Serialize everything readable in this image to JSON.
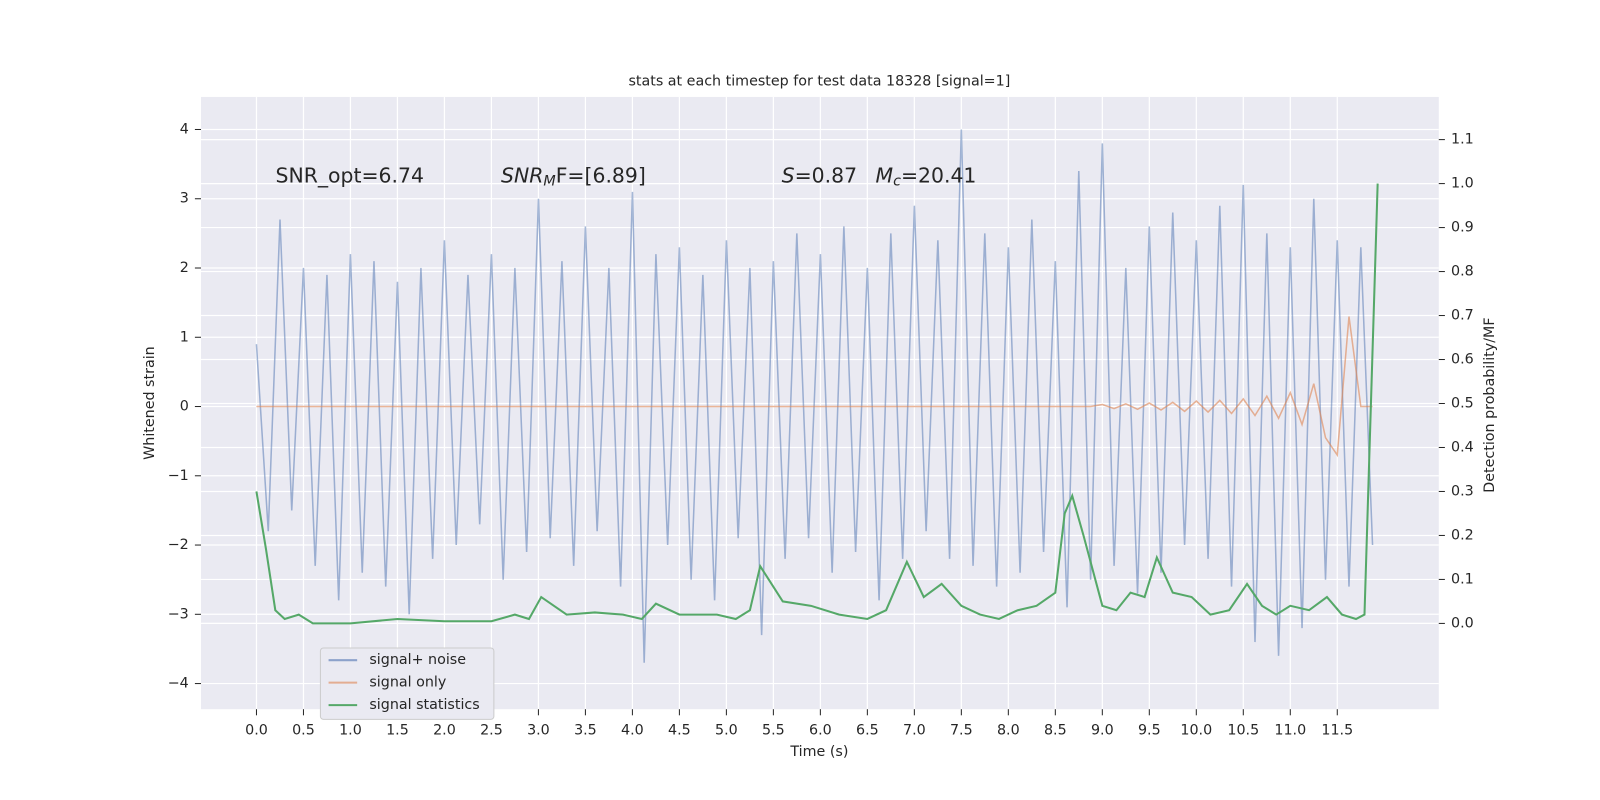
{
  "chart_data": {
    "type": "line",
    "title": "stats at each timestep for test data 18328 [signal=1]",
    "x_label": "Time (s)",
    "y_label": "Whitened strain",
    "y2_label": "Detection probability/MF",
    "annotations": [
      {
        "parts": [
          "SNR_opt=6.74"
        ]
      },
      {
        "parts": [
          "SNR",
          "M",
          "F=[6.89]"
        ]
      },
      {
        "parts": [
          "S",
          "=0.87"
        ]
      },
      {
        "parts": [
          "M",
          "c",
          "=20.41"
        ]
      }
    ],
    "xlim": [
      -0.59,
      12.58
    ],
    "ylim": [
      -4.37,
      4.47
    ],
    "y2lim": [
      -0.195,
      1.197
    ],
    "xticks": [
      {
        "value": 0,
        "label": "0.0"
      },
      {
        "value": 0.5,
        "label": "0.5"
      },
      {
        "value": 1,
        "label": "1.0"
      },
      {
        "value": 1.5,
        "label": "1.5"
      },
      {
        "value": 2,
        "label": "2.0"
      },
      {
        "value": 2.5,
        "label": "2.5"
      },
      {
        "value": 3,
        "label": "3.0"
      },
      {
        "value": 3.5,
        "label": "3.5"
      },
      {
        "value": 4,
        "label": "4.0"
      },
      {
        "value": 4.5,
        "label": "4.5"
      },
      {
        "value": 5,
        "label": "5.0"
      },
      {
        "value": 5.5,
        "label": "5.5"
      },
      {
        "value": 6,
        "label": "6.0"
      },
      {
        "value": 6.5,
        "label": "6.5"
      },
      {
        "value": 7,
        "label": "7.0"
      },
      {
        "value": 7.5,
        "label": "7.5"
      },
      {
        "value": 8,
        "label": "8.0"
      },
      {
        "value": 8.5,
        "label": "8.5"
      },
      {
        "value": 9,
        "label": "9.0"
      },
      {
        "value": 9.5,
        "label": "9.5"
      },
      {
        "value": 10,
        "label": "10.0"
      },
      {
        "value": 10.5,
        "label": "10.5"
      },
      {
        "value": 11,
        "label": "11.0"
      },
      {
        "value": 11.5,
        "label": "11.5"
      }
    ],
    "yticks": [
      {
        "value": -4,
        "label": "−4"
      },
      {
        "value": -3,
        "label": "−3"
      },
      {
        "value": -2,
        "label": "−2"
      },
      {
        "value": -1,
        "label": "−1"
      },
      0,
      1,
      2,
      3,
      4
    ],
    "y2ticks": [
      {
        "value": 0,
        "label": "0.0"
      },
      {
        "value": 0.1,
        "label": "0.1"
      },
      {
        "value": 0.2,
        "label": "0.2"
      },
      {
        "value": 0.3,
        "label": "0.3"
      },
      {
        "value": 0.4,
        "label": "0.4"
      },
      {
        "value": 0.5,
        "label": "0.5"
      },
      {
        "value": 0.6,
        "label": "0.6"
      },
      {
        "value": 0.7,
        "label": "0.7"
      },
      {
        "value": 0.8,
        "label": "0.8"
      },
      {
        "value": 0.9,
        "label": "0.9"
      },
      {
        "value": 1.0,
        "label": "1.0"
      },
      {
        "value": 1.1,
        "label": "1.1"
      }
    ],
    "grid": true,
    "legend": "lower left",
    "x": [
      0,
      0.125,
      0.25,
      0.375,
      0.5,
      0.625,
      0.75,
      0.875,
      1,
      1.125,
      1.25,
      1.375,
      1.5,
      1.625,
      1.75,
      1.875,
      2,
      2.125,
      2.25,
      2.375,
      2.5,
      2.625,
      2.75,
      2.875,
      3,
      3.125,
      3.25,
      3.375,
      3.5,
      3.625,
      3.75,
      3.875,
      4,
      4.125,
      4.25,
      4.375,
      4.5,
      4.625,
      4.75,
      4.875,
      5,
      5.125,
      5.25,
      5.375,
      5.5,
      5.625,
      5.75,
      5.875,
      6,
      6.125,
      6.25,
      6.375,
      6.5,
      6.625,
      6.75,
      6.875,
      7,
      7.125,
      7.25,
      7.375,
      7.5,
      7.625,
      7.75,
      7.875,
      8,
      8.125,
      8.25,
      8.375,
      8.5,
      8.625,
      8.75,
      8.875,
      9,
      9.125,
      9.25,
      9.375,
      9.5,
      9.625,
      9.75,
      9.875,
      10,
      10.125,
      10.25,
      10.375,
      10.5,
      10.625,
      10.75,
      10.875,
      11,
      11.125,
      11.25,
      11.375,
      11.5,
      11.625,
      11.75,
      11.875
    ],
    "series": [
      {
        "name": "signal+ noise",
        "color": "#4c72b0",
        "values": [
          0.9,
          -1.8,
          2.7,
          -1.5,
          2.0,
          -2.3,
          1.9,
          -2.8,
          2.2,
          -2.4,
          2.1,
          -2.6,
          1.8,
          -3.0,
          2.0,
          -2.2,
          2.4,
          -2.0,
          1.9,
          -1.7,
          2.2,
          -2.5,
          2.0,
          -2.1,
          3.0,
          -1.9,
          2.1,
          -2.3,
          2.6,
          -1.8,
          2.0,
          -2.6,
          3.1,
          -3.7,
          2.2,
          -2.0,
          2.3,
          -2.5,
          1.9,
          -2.8,
          2.4,
          -1.9,
          2.0,
          -3.3,
          2.1,
          -2.2,
          2.5,
          -1.9,
          2.2,
          -2.4,
          2.6,
          -2.1,
          2.0,
          -2.8,
          2.5,
          -2.2,
          2.9,
          -1.8,
          2.4,
          -2.2,
          4.0,
          -2.3,
          2.5,
          -2.6,
          2.3,
          -2.4,
          2.7,
          -2.1,
          2.1,
          -2.9,
          3.4,
          -2.5,
          3.8,
          -2.3,
          2.0,
          -2.7,
          2.6,
          -2.4,
          2.8,
          -2.0,
          2.4,
          -2.2,
          2.9,
          -2.6,
          3.2,
          -3.4,
          2.5,
          -3.6,
          2.3,
          -3.2,
          3.0,
          -2.5,
          2.4,
          -2.6,
          2.3,
          -2.0
        ]
      },
      {
        "name": "signal only",
        "color": "#dd8452",
        "values": [
          0,
          0,
          0,
          0,
          0,
          0,
          0,
          0,
          0,
          0,
          0,
          0,
          0,
          0,
          0,
          0,
          0,
          0,
          0,
          0,
          0,
          0,
          0,
          0,
          0,
          0,
          0,
          0,
          0,
          0,
          0,
          0,
          0,
          0,
          0,
          0,
          0,
          0,
          0,
          0,
          0,
          0,
          0,
          0,
          0,
          0,
          0,
          0,
          0,
          0,
          0,
          0,
          0,
          0,
          0,
          0,
          0,
          0,
          0,
          0,
          0,
          0,
          0,
          0,
          0,
          0,
          0,
          0,
          0,
          0,
          0,
          0,
          0.03,
          -0.03,
          0.04,
          -0.04,
          0.05,
          -0.05,
          0.06,
          -0.07,
          0.08,
          -0.08,
          0.09,
          -0.1,
          0.11,
          -0.13,
          0.15,
          -0.17,
          0.2,
          -0.26,
          0.33,
          -0.45,
          -0.7,
          1.3,
          0,
          0
        ]
      },
      {
        "name": "signal statistics",
        "color": "#55a868",
        "axis": "y2",
        "x": [
          0,
          0.1,
          0.2,
          0.3,
          0.45,
          0.6,
          1.0,
          1.5,
          2.0,
          2.5,
          2.75,
          2.9,
          3.03,
          3.3,
          3.6,
          3.9,
          4.1,
          4.25,
          4.5,
          4.9,
          5.1,
          5.25,
          5.36,
          5.45,
          5.6,
          5.9,
          6.2,
          6.5,
          6.7,
          6.92,
          7.1,
          7.29,
          7.5,
          7.7,
          7.9,
          8.1,
          8.3,
          8.5,
          8.6,
          8.68,
          8.8,
          9.0,
          9.15,
          9.3,
          9.45,
          9.58,
          9.75,
          9.95,
          10.15,
          10.35,
          10.54,
          10.7,
          10.85,
          11.0,
          11.2,
          11.39,
          11.55,
          11.7,
          11.79,
          11.93
        ],
        "values": [
          0.3,
          0.17,
          0.03,
          0.01,
          0.02,
          0.0,
          0.0,
          0.01,
          0.005,
          0.005,
          0.02,
          0.01,
          0.06,
          0.02,
          0.025,
          0.02,
          0.01,
          0.045,
          0.02,
          0.02,
          0.01,
          0.03,
          0.13,
          0.1,
          0.05,
          0.04,
          0.02,
          0.01,
          0.03,
          0.14,
          0.06,
          0.09,
          0.04,
          0.02,
          0.01,
          0.03,
          0.04,
          0.07,
          0.25,
          0.29,
          0.2,
          0.04,
          0.03,
          0.07,
          0.06,
          0.15,
          0.07,
          0.06,
          0.02,
          0.03,
          0.09,
          0.04,
          0.02,
          0.04,
          0.03,
          0.06,
          0.02,
          0.01,
          0.02,
          1.0
        ]
      }
    ]
  }
}
